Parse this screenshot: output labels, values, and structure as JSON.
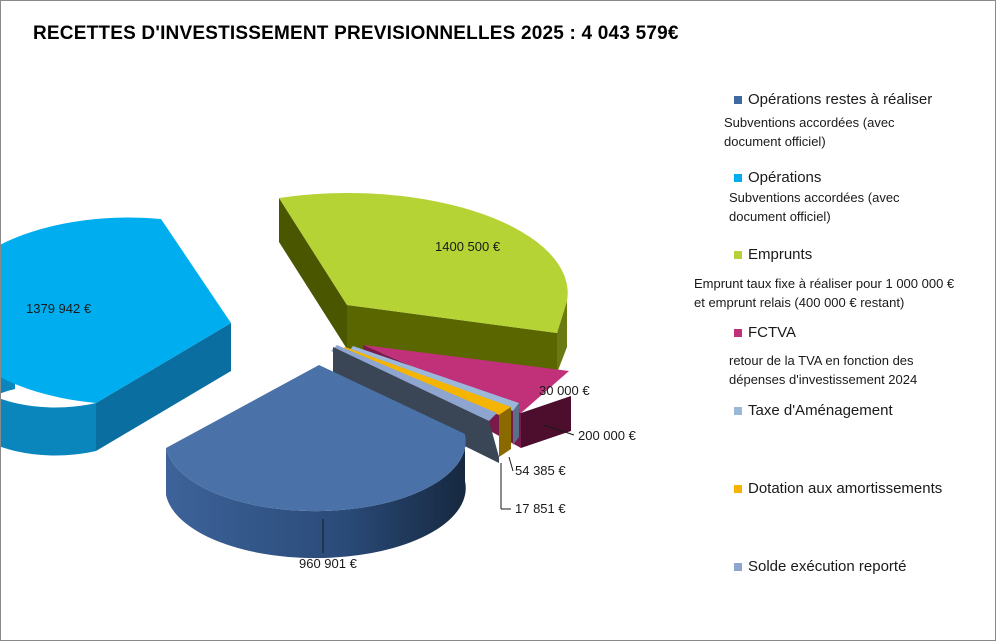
{
  "title": "RECETTES D'INVESTISSEMENT PREVISIONNELLES 2025 : 4 043 579€",
  "chart_data": {
    "type": "pie",
    "style": "3d-exploded",
    "title": "RECETTES D'INVESTISSEMENT PREVISIONNELLES 2025 : 4 043 579€",
    "total": 4043579,
    "legend_position": "right",
    "slices": [
      {
        "name": "Opérations restes à réaliser",
        "value": 960901,
        "label": "960 901 €",
        "color": "#4a72a8"
      },
      {
        "name": "Opérations",
        "value": 1379942,
        "label": "1379 942 €",
        "color": "#00aeef"
      },
      {
        "name": "Emprunts",
        "value": 1400500,
        "label": "1400 500 €",
        "color": "#b5d334"
      },
      {
        "name": "FCTVA",
        "value": 200000,
        "label": "200 000 €",
        "color": "#c0317a"
      },
      {
        "name": "Taxe d'Aménagement",
        "value": 30000,
        "label": "30 000 €",
        "color": "#9bb7d9"
      },
      {
        "name": "Dotation aux amortissements",
        "value": 17851,
        "label": "17 851 €",
        "color": "#f5b400"
      },
      {
        "name": "Solde exécution reporté",
        "value": 54385,
        "label": "54 385 €",
        "color": "#8ea6cf"
      }
    ]
  },
  "legend": [
    {
      "label": "Opérations restes à réaliser",
      "desc": "Subventions accordées (avec\ndocument officiel)",
      "color": "#3f6aa0"
    },
    {
      "label": "Opérations",
      "desc": "Subventions accordées (avec\ndocument officiel)",
      "color": "#00aeef"
    },
    {
      "label": "Emprunts",
      "desc": "Emprunt taux fixe à réaliser pour 1 000 000 €\net emprunt relais (400 000 € restant)",
      "color": "#b5d334"
    },
    {
      "label": "FCTVA",
      "desc": "retour de la TVA en fonction des\ndépenses d'investissement 2024",
      "color": "#c0317a"
    },
    {
      "label": "Taxe d'Aménagement",
      "desc": "",
      "color": "#9bb7d9"
    },
    {
      "label": "Dotation aux amortissements",
      "desc": "",
      "color": "#f5b400"
    },
    {
      "label": "Solde exécution reporté",
      "desc": "",
      "color": "#8ea6cf"
    }
  ]
}
